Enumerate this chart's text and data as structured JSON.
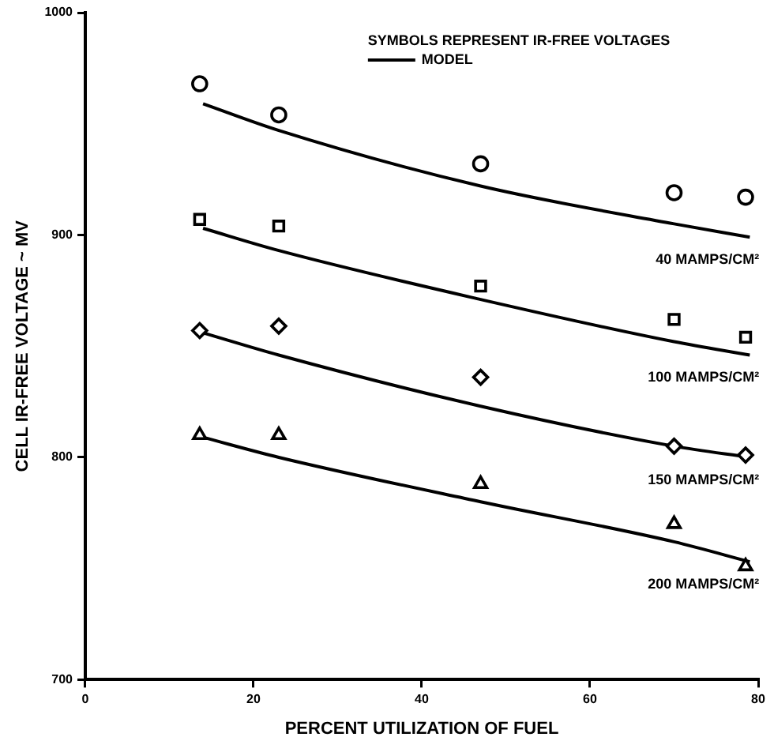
{
  "chart_data": {
    "type": "scatter",
    "xlabel": "PERCENT UTILIZATION OF FUEL",
    "ylabel": "CELL IR-FREE VOLTAGE ~ MV",
    "legend_title": "SYMBOLS REPRESENT IR-FREE VOLTAGES",
    "legend": "top right",
    "grid": false,
    "xlim": [
      0,
      80
    ],
    "xticks": [
      0,
      20,
      40,
      60,
      80
    ],
    "ylim": [
      700,
      1000
    ],
    "yticks": [
      700,
      800,
      900,
      1000
    ],
    "series": [
      {
        "marker": "circle",
        "color": "#000000",
        "x": [
          13.6,
          23,
          47,
          70,
          78.5
        ],
        "values": [
          968,
          954,
          932,
          919,
          917
        ]
      },
      {
        "marker": "square",
        "color": "#000000",
        "x": [
          13.6,
          23,
          47,
          70,
          78.5
        ],
        "values": [
          907,
          904,
          877,
          862,
          854
        ]
      },
      {
        "marker": "diamond",
        "color": "#000000",
        "x": [
          13.6,
          23,
          47,
          70,
          78.5
        ],
        "values": [
          857,
          859,
          836,
          805,
          801
        ]
      },
      {
        "marker": "triangle",
        "color": "#000000",
        "x": [
          13.6,
          23,
          47,
          70,
          78.5
        ],
        "values": [
          810,
          810,
          788,
          770,
          751
        ]
      },
      {
        "type": "line",
        "name": "MODEL",
        "marker": "none",
        "color": "#000000",
        "x": [
          14,
          23,
          47,
          70,
          79
        ],
        "values": [
          959,
          947,
          922,
          905,
          899
        ]
      },
      {
        "type": "line",
        "marker": "none",
        "color": "#000000",
        "x": [
          14,
          23,
          47,
          70,
          79
        ],
        "values": [
          903,
          893,
          871,
          852,
          846
        ]
      },
      {
        "type": "line",
        "marker": "none",
        "color": "#000000",
        "x": [
          14,
          23,
          47,
          70,
          79
        ],
        "values": [
          856,
          846,
          823,
          805,
          800
        ]
      },
      {
        "type": "line",
        "marker": "none",
        "color": "#000000",
        "x": [
          14,
          23,
          47,
          70,
          79
        ],
        "values": [
          809,
          800,
          780,
          762,
          753
        ]
      }
    ],
    "annotations": [
      "40 MAMPS/CM²",
      "100 MAMPS/CM²",
      "150 MAMPS/CM²",
      "200 MAMPS/CM²"
    ]
  }
}
